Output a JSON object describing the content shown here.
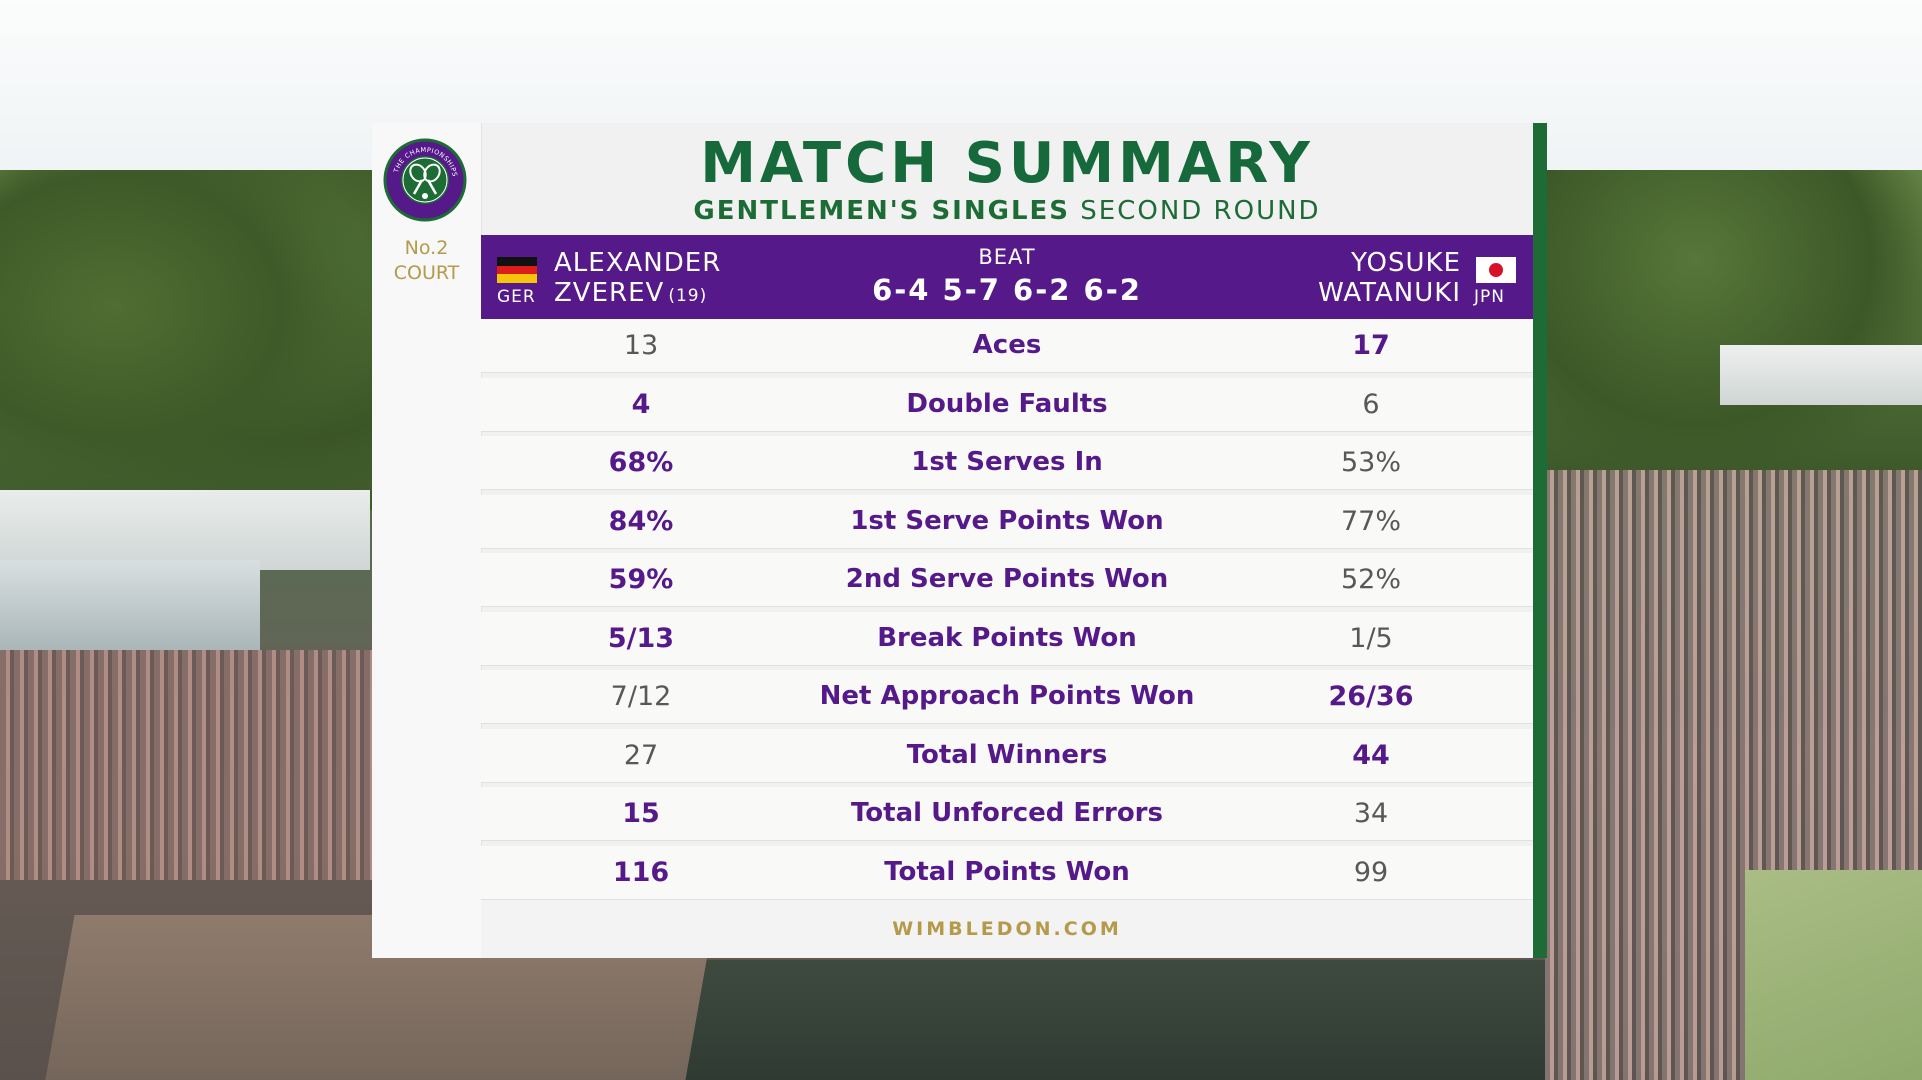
{
  "court": {
    "line1": "No.2",
    "line2": "COURT"
  },
  "title": "MATCH SUMMARY",
  "subtitle": {
    "event": "GENTLEMEN'S SINGLES",
    "round": "SECOND ROUND"
  },
  "header": {
    "player1": {
      "first_name": "ALEXANDER",
      "last_name": "ZVEREV",
      "seed": "(19)",
      "country": "GER"
    },
    "player2": {
      "first_name": "YOSUKE",
      "last_name": "WATANUKI",
      "country": "JPN"
    },
    "result_label": "BEAT",
    "score": "6-4 5-7 6-2 6-2"
  },
  "stats": [
    {
      "label": "Aces",
      "p1": "13",
      "p2": "17",
      "better": "p2"
    },
    {
      "label": "Double Faults",
      "p1": "4",
      "p2": "6",
      "better": "p1"
    },
    {
      "label": "1st Serves In",
      "p1": "68%",
      "p2": "53%",
      "better": "p1"
    },
    {
      "label": "1st Serve Points Won",
      "p1": "84%",
      "p2": "77%",
      "better": "p1"
    },
    {
      "label": "2nd Serve Points Won",
      "p1": "59%",
      "p2": "52%",
      "better": "p1"
    },
    {
      "label": "Break Points Won",
      "p1": "5/13",
      "p2": "1/5",
      "better": "p1"
    },
    {
      "label": "Net Approach Points Won",
      "p1": "7/12",
      "p2": "26/36",
      "better": "p2"
    },
    {
      "label": "Total Winners",
      "p1": "27",
      "p2": "44",
      "better": "p2"
    },
    {
      "label": "Total Unforced Errors",
      "p1": "15",
      "p2": "34",
      "better": "p1"
    },
    {
      "label": "Total Points Won",
      "p1": "116",
      "p2": "99",
      "better": "p1"
    }
  ],
  "footer": "WIMBLEDON.COM",
  "logo_text": "THE CHAMPIONSHIPS WIMBLEDON",
  "colors": {
    "purple": "#55198a",
    "green": "#16693a",
    "gold": "#b49a4a"
  }
}
